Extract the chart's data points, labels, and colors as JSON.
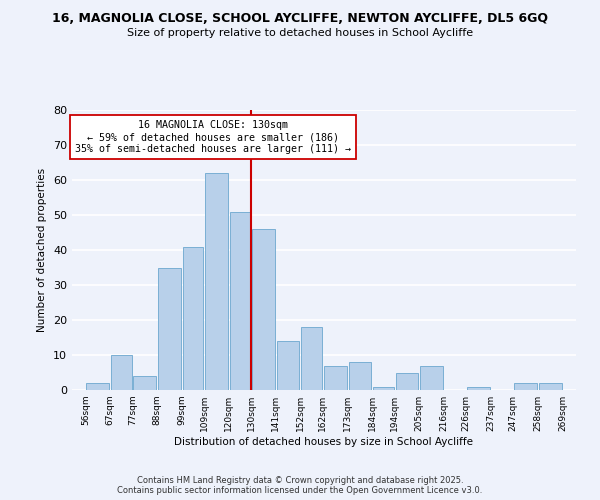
{
  "title": "16, MAGNOLIA CLOSE, SCHOOL AYCLIFFE, NEWTON AYCLIFFE, DL5 6GQ",
  "subtitle": "Size of property relative to detached houses in School Aycliffe",
  "xlabel": "Distribution of detached houses by size in School Aycliffe",
  "ylabel": "Number of detached properties",
  "bar_color": "#b8d0ea",
  "bar_edge_color": "#7aafd4",
  "background_color": "#eef2fb",
  "grid_color": "#ffffff",
  "vline_x": 130,
  "vline_color": "#cc0000",
  "annotation_title": "16 MAGNOLIA CLOSE: 130sqm",
  "annotation_line1": "← 59% of detached houses are smaller (186)",
  "annotation_line2": "35% of semi-detached houses are larger (111) →",
  "bin_edges": [
    56,
    67,
    77,
    88,
    99,
    109,
    120,
    130,
    141,
    152,
    162,
    173,
    184,
    194,
    205,
    216,
    226,
    237,
    247,
    258,
    269
  ],
  "bin_counts": [
    2,
    10,
    4,
    35,
    41,
    62,
    51,
    46,
    14,
    18,
    7,
    8,
    1,
    5,
    7,
    0,
    1,
    0,
    2,
    2
  ],
  "tick_labels": [
    "56sqm",
    "67sqm",
    "77sqm",
    "88sqm",
    "99sqm",
    "109sqm",
    "120sqm",
    "130sqm",
    "141sqm",
    "152sqm",
    "162sqm",
    "173sqm",
    "184sqm",
    "194sqm",
    "205sqm",
    "216sqm",
    "226sqm",
    "237sqm",
    "247sqm",
    "258sqm",
    "269sqm"
  ],
  "ylim": [
    0,
    80
  ],
  "yticks": [
    0,
    10,
    20,
    30,
    40,
    50,
    60,
    70,
    80
  ],
  "footer1": "Contains HM Land Registry data © Crown copyright and database right 2025.",
  "footer2": "Contains public sector information licensed under the Open Government Licence v3.0."
}
